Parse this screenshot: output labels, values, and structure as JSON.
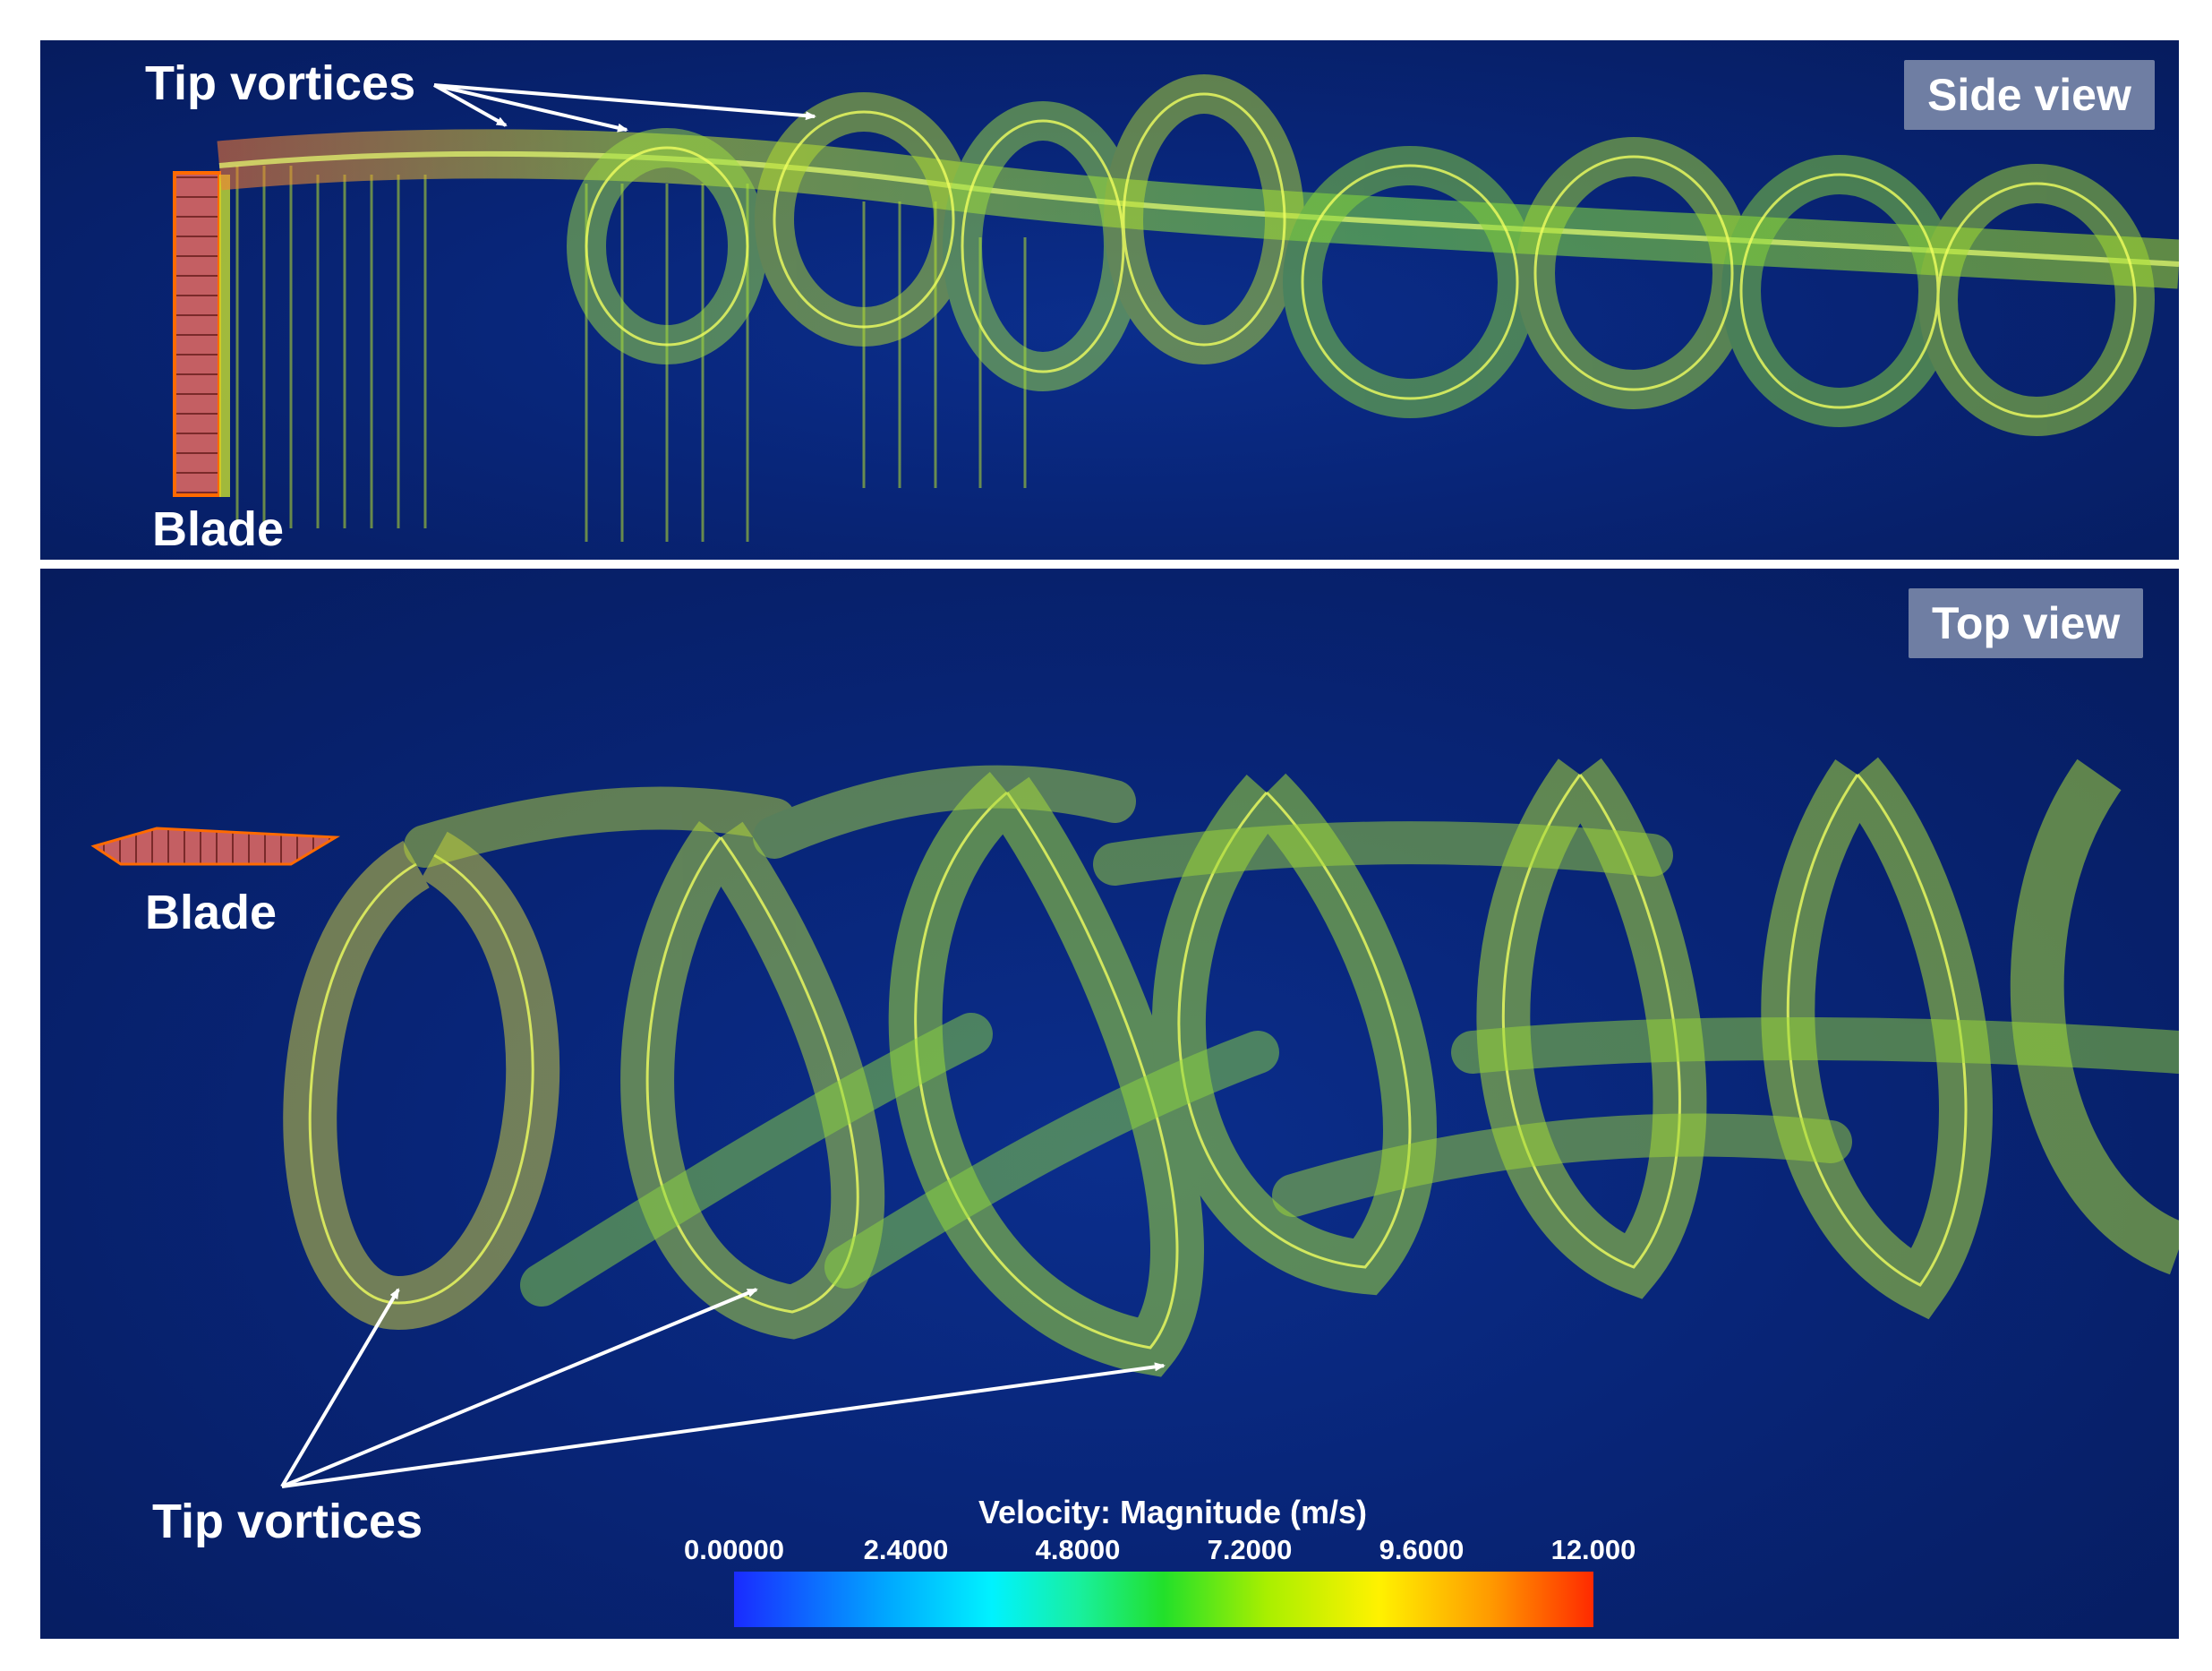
{
  "side_panel": {
    "badge": "Side view",
    "tip_label": "Tip vortices",
    "blade_label": "Blade"
  },
  "top_panel": {
    "badge": "Top view",
    "tip_label": "Tip vortices",
    "blade_label": "Blade"
  },
  "colorbar": {
    "title": "Velocity: Magnitude (m/s)",
    "ticks": [
      "0.00000",
      "2.4000",
      "4.8000",
      "7.2000",
      "9.6000",
      "12.000"
    ]
  },
  "colors": {
    "background": "#082578",
    "badge": "#6f7ea3",
    "blade": "#c86a6a",
    "vortex_low": "#2ef0a0",
    "vortex_mid": "#b8f020",
    "vortex_high": "#ff8a20"
  }
}
